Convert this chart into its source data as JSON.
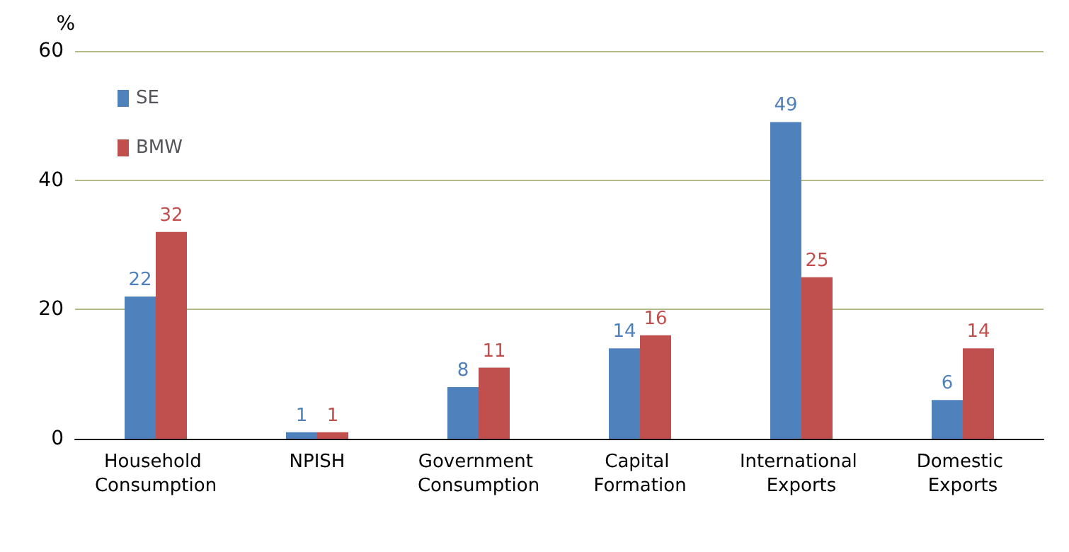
{
  "chart_data": {
    "type": "bar",
    "ylabel": "%",
    "categories": [
      "Household Consumption",
      "NPISH",
      "Government Consumption",
      "Capital Formation",
      "International Exports",
      "Domestic Exports"
    ],
    "series": [
      {
        "name": "SE",
        "color": "#4f81bd",
        "values": [
          22,
          1,
          8,
          14,
          49,
          6
        ]
      },
      {
        "name": "BMW",
        "color": "#c0504d",
        "values": [
          32,
          1,
          11,
          16,
          25,
          14
        ]
      }
    ],
    "ylim": [
      0,
      60
    ],
    "yticks": [
      0,
      20,
      40,
      60
    ],
    "grid": "y",
    "legend": "top left",
    "data_labels": true
  }
}
